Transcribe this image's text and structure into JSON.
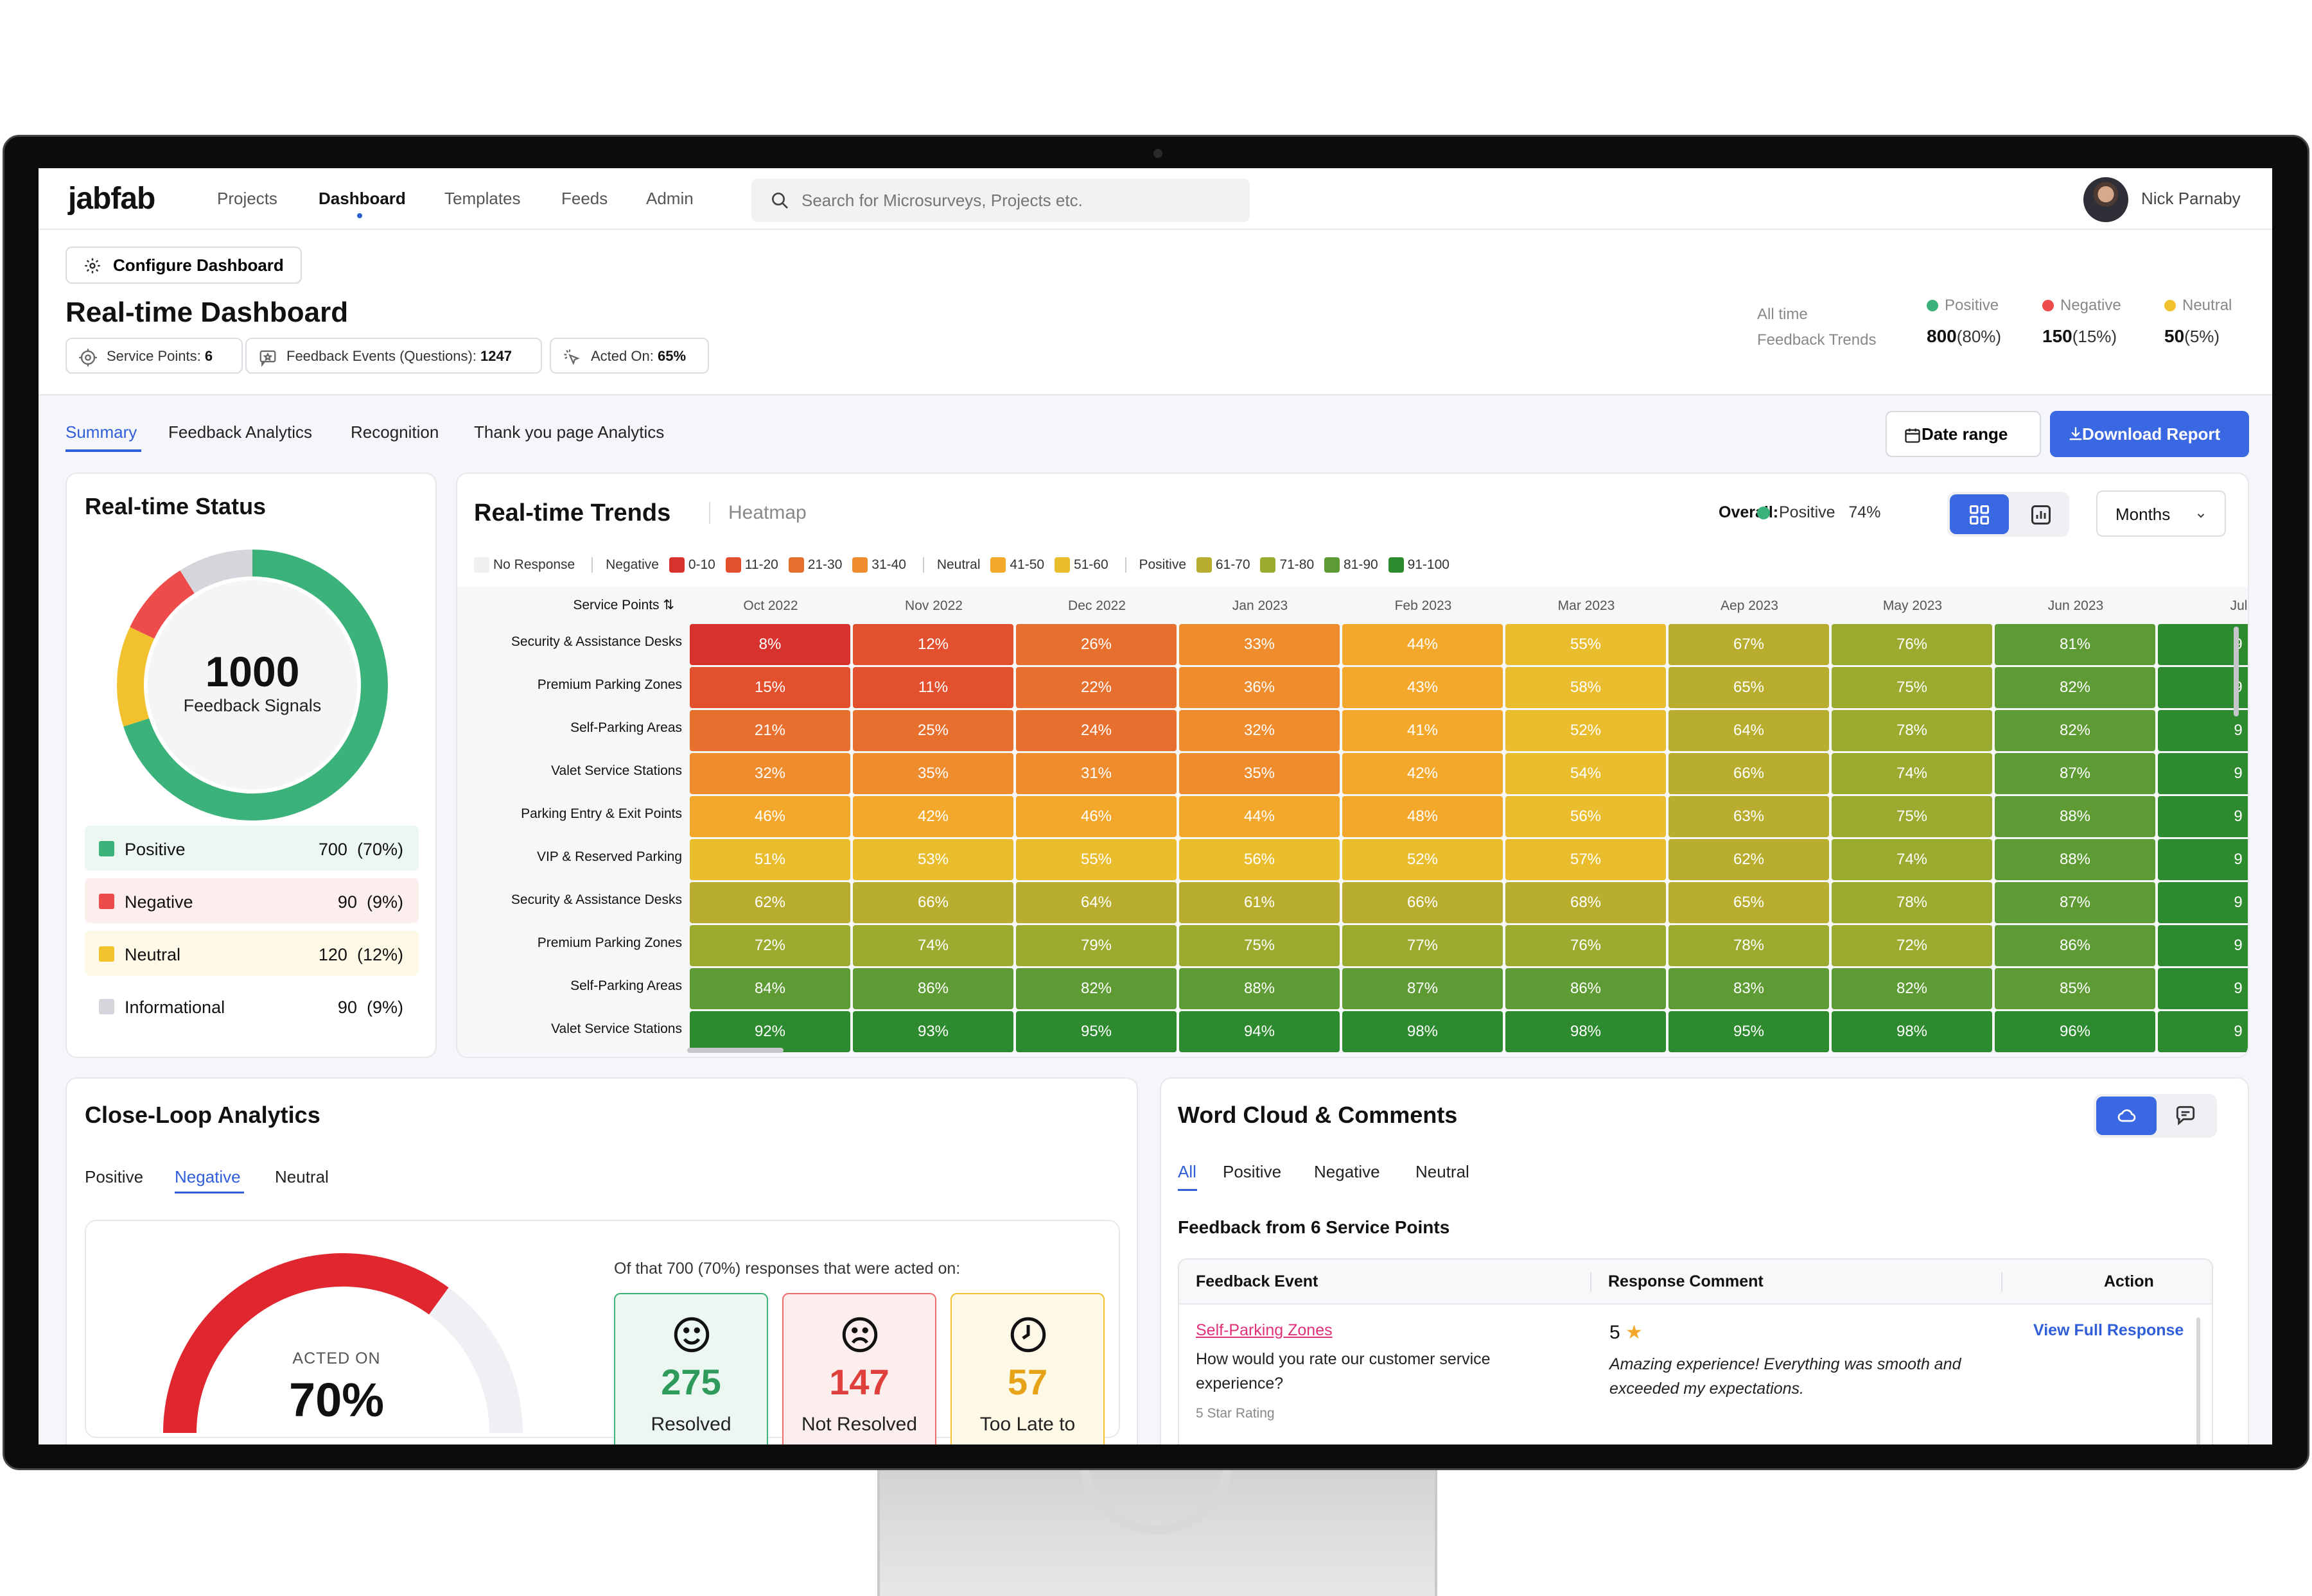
{
  "app": {
    "logo": "jabfab",
    "user_name": "Nick Parnaby"
  },
  "nav": {
    "items": [
      "Projects",
      "Dashboard",
      "Templates",
      "Feeds",
      "Admin"
    ],
    "active": "Dashboard"
  },
  "search": {
    "placeholder": "Search for Microsurveys, Projects etc."
  },
  "header": {
    "configure_label": "Configure Dashboard",
    "title": "Real-time Dashboard",
    "pills": [
      {
        "label": "Service Points:",
        "value": "6",
        "icon": "target-icon"
      },
      {
        "label": "Feedback Events (Questions):",
        "value": "1247",
        "icon": "star-message-icon"
      },
      {
        "label": "Acted On:",
        "value": "65%",
        "icon": "click-icon"
      }
    ],
    "all_time_label": "All time",
    "feedback_trends_label": "Feedback Trends",
    "trends": [
      {
        "name": "Positive",
        "value": "800",
        "pct": "(80%)",
        "color": "#3bb27a"
      },
      {
        "name": "Negative",
        "value": "150",
        "pct": "(15%)",
        "color": "#ee4b4b"
      },
      {
        "name": "Neutral",
        "value": "50",
        "pct": "(5%)",
        "color": "#f2c12e"
      }
    ]
  },
  "tabs": {
    "items": [
      "Summary",
      "Feedback Analytics",
      "Recognition",
      "Thank you page Analytics"
    ],
    "active": "Summary"
  },
  "actions": {
    "date_range": "Date range",
    "download": "Download Report"
  },
  "status": {
    "title": "Real-time Status",
    "total": "1000",
    "total_label": "Feedback Signals",
    "items": [
      {
        "name": "Positive",
        "value": "700",
        "pct": "(70%)",
        "color": "#3bb27a",
        "bg": "#ebf7f0",
        "fraction": 0.7
      },
      {
        "name": "Negative",
        "value": "90",
        "pct": "(9%)",
        "color": "#ee4b4b",
        "bg": "#fdeeee",
        "fraction": 0.09
      },
      {
        "name": "Neutral",
        "value": "120",
        "pct": "(12%)",
        "color": "#f2c12e",
        "bg": "#fef8e6",
        "fraction": 0.12
      },
      {
        "name": "Informational",
        "value": "90",
        "pct": "(9%)",
        "color": "#d4d6db",
        "bg": "#ffffff",
        "fraction": 0.09
      }
    ]
  },
  "trends_card": {
    "title": "Real-time Trends",
    "subtitle": "Heatmap",
    "overall_label": "Overall:",
    "overall_positive": "Positive",
    "overall_value": "74%",
    "period_select": "Months",
    "scale": {
      "no_response": "No Response",
      "negative": "Negative",
      "neutral": "Neutral",
      "positive": "Positive",
      "bins": [
        {
          "label": "0-10",
          "color": "#d7322d"
        },
        {
          "label": "11-20",
          "color": "#e2502e"
        },
        {
          "label": "21-30",
          "color": "#e8702f"
        },
        {
          "label": "31-40",
          "color": "#ef8c2e"
        },
        {
          "label": "41-50",
          "color": "#f4a82b"
        },
        {
          "label": "51-60",
          "color": "#e9bd2e"
        },
        {
          "label": "61-70",
          "color": "#b9ad2f"
        },
        {
          "label": "71-80",
          "color": "#9aab30"
        },
        {
          "label": "81-90",
          "color": "#5e9b34"
        },
        {
          "label": "91-100",
          "color": "#2d8a2f"
        }
      ]
    },
    "row_header": "Service Points",
    "columns": [
      "Oct 2022",
      "Nov 2022",
      "Dec 2022",
      "Jan 2023",
      "Feb 2023",
      "Mar 2023",
      "Aep 2023",
      "May 2023",
      "Jun 2023",
      "Jul"
    ],
    "rows": [
      {
        "name": "Security & Assistance Desks",
        "values": [
          8,
          12,
          26,
          33,
          44,
          55,
          67,
          76,
          81,
          9
        ]
      },
      {
        "name": "Premium Parking Zones",
        "values": [
          15,
          11,
          22,
          36,
          43,
          58,
          65,
          75,
          82,
          9
        ]
      },
      {
        "name": "Self-Parking Areas",
        "values": [
          21,
          25,
          24,
          32,
          41,
          52,
          64,
          78,
          82,
          9
        ]
      },
      {
        "name": "Valet Service Stations",
        "values": [
          32,
          35,
          31,
          35,
          42,
          54,
          66,
          74,
          87,
          9
        ]
      },
      {
        "name": "Parking Entry & Exit Points",
        "values": [
          46,
          42,
          46,
          44,
          48,
          56,
          63,
          75,
          88,
          9
        ]
      },
      {
        "name": "VIP & Reserved Parking",
        "values": [
          51,
          53,
          55,
          56,
          52,
          57,
          62,
          74,
          88,
          9
        ]
      },
      {
        "name": "Security & Assistance Desks",
        "values": [
          62,
          66,
          64,
          61,
          66,
          68,
          65,
          78,
          87,
          9
        ]
      },
      {
        "name": "Premium Parking Zones",
        "values": [
          72,
          74,
          79,
          75,
          77,
          76,
          78,
          72,
          86,
          9
        ]
      },
      {
        "name": "Self-Parking Areas",
        "values": [
          84,
          86,
          82,
          88,
          87,
          86,
          83,
          82,
          85,
          9
        ]
      },
      {
        "name": "Valet Service Stations",
        "values": [
          92,
          93,
          95,
          94,
          98,
          98,
          95,
          98,
          96,
          9
        ]
      }
    ]
  },
  "close_loop": {
    "title": "Close-Loop Analytics",
    "tabs": [
      "Positive",
      "Negative",
      "Neutral"
    ],
    "active_tab": "Negative",
    "acted_label": "ACTED ON",
    "acted_value": "70%",
    "acted_fraction": 0.7,
    "summary": "Of that 700 (70%) responses that were acted on:",
    "boxes": [
      {
        "value": "275",
        "label": "Resolved",
        "icon": "smile-icon",
        "color": "#2e9a5c",
        "bg": "#ebf7f0",
        "border": "#3bb27a"
      },
      {
        "value": "147",
        "label": "Not Resolved",
        "icon": "frown-icon",
        "color": "#e0403c",
        "bg": "#fdeeee",
        "border": "#ee6b6b"
      },
      {
        "value": "57",
        "label": "Too Late to",
        "icon": "clock-icon",
        "color": "#e6a318",
        "bg": "#fef8e6",
        "border": "#f2c12e"
      }
    ]
  },
  "word_cloud": {
    "title": "Word Cloud & Comments",
    "tabs": [
      "All",
      "Positive",
      "Negative",
      "Neutral"
    ],
    "active_tab": "All",
    "from": "Feedback from 6 Service Points",
    "columns": [
      "Feedback Event",
      "Response Comment",
      "Action"
    ],
    "row": {
      "service_point": "Self-Parking Zones",
      "question": "How would you rate our customer service experience?",
      "rating_type": "5 Star Rating",
      "rating": "5",
      "comment": "Amazing experience! Everything was smooth and exceeded my expectations.",
      "action": "View Full Response"
    }
  }
}
